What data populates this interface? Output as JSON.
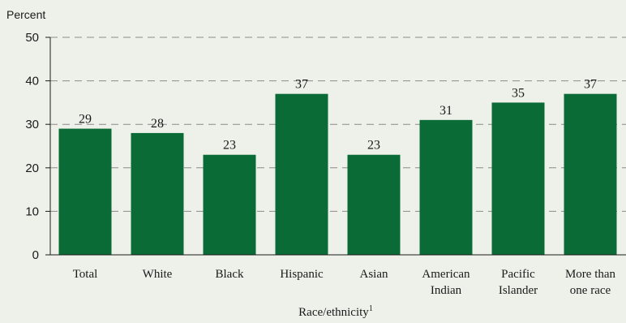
{
  "chart_data": {
    "type": "bar",
    "ylabel": "Percent",
    "xlabel": "Race/ethnicity",
    "xlabel_superscript": "1",
    "categories": [
      [
        "Total"
      ],
      [
        "White"
      ],
      [
        "Black"
      ],
      [
        "Hispanic"
      ],
      [
        "Asian"
      ],
      [
        "American",
        "Indian"
      ],
      [
        "Pacific",
        "Islander"
      ],
      [
        "More than",
        "one race"
      ]
    ],
    "values": [
      29,
      28,
      23,
      37,
      23,
      31,
      35,
      37
    ],
    "value_labels": [
      "29",
      "28",
      "23",
      "37",
      "23",
      "31",
      "35",
      "37"
    ],
    "ylim": [
      0,
      50
    ],
    "yticks": [
      0,
      10,
      20,
      30,
      40,
      50
    ],
    "grid": true,
    "bar_color": "#0a6b36",
    "background_color": "#eef1ea",
    "gridline_color": "#8a8a8a"
  }
}
